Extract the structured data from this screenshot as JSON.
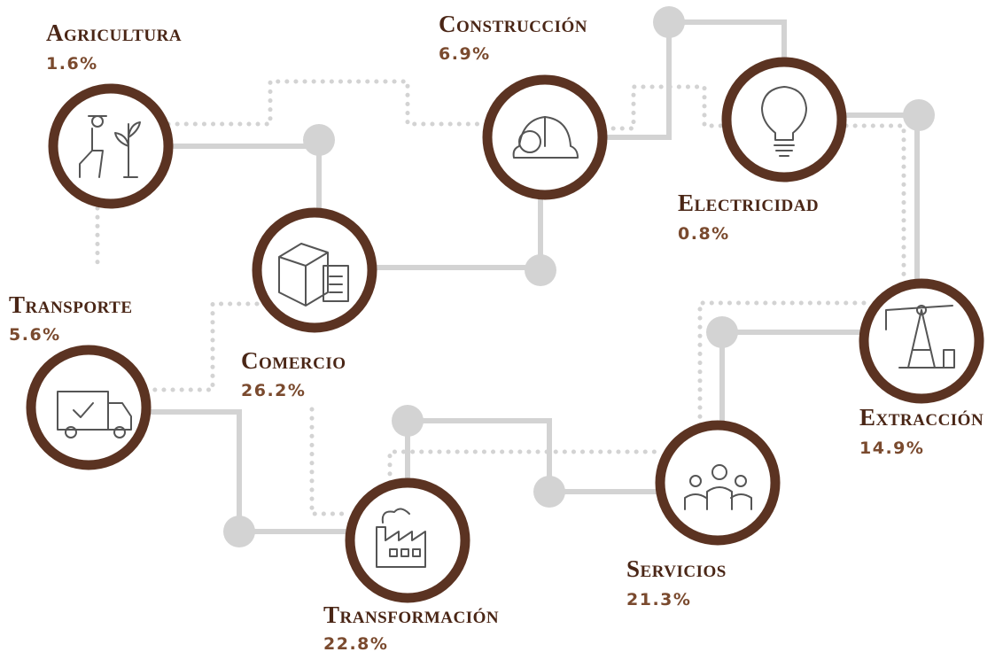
{
  "nodes": [
    {
      "label": "Agricultura",
      "value": "1.6%"
    },
    {
      "label": "Construcción",
      "value": "6.9%"
    },
    {
      "label": "Electricidad",
      "value": "0.8%"
    },
    {
      "label": "Comercio",
      "value": "26.2%"
    },
    {
      "label": "Transporte",
      "value": "5.6%"
    },
    {
      "label": "Extracción",
      "value": "14.9%"
    },
    {
      "label": "Servicios",
      "value": "21.3%"
    },
    {
      "label": "Transformación",
      "value": "22.8%"
    }
  ]
}
